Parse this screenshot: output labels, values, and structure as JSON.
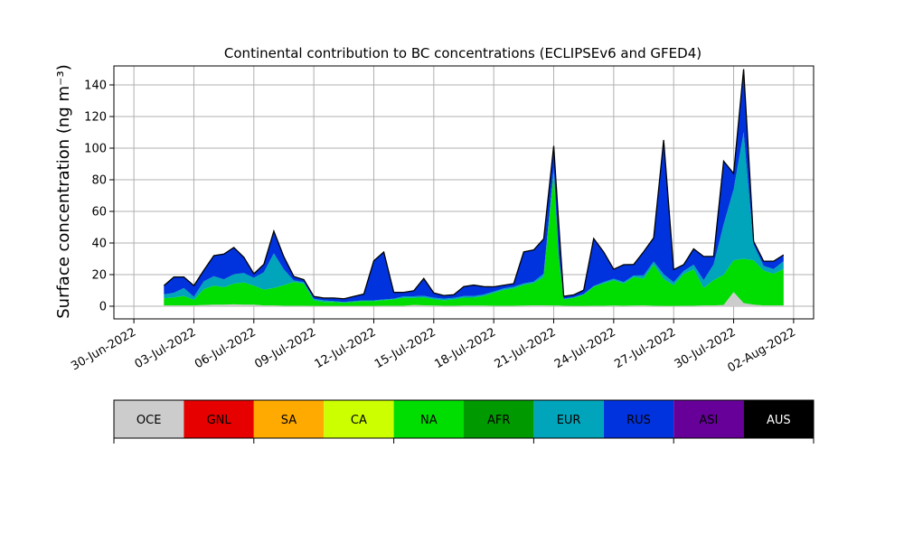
{
  "chart_data": {
    "type": "area",
    "stacked": true,
    "title": "Continental contribution to BC concentrations (ECLIPSEv6 and GFED4)",
    "ylabel": "Surface concentration (ng m⁻³)",
    "xlabel": "",
    "grid": true,
    "xlim": [
      "2022-06-29",
      "2022-08-03"
    ],
    "ylim": [
      -8,
      152
    ],
    "yticks": [
      0,
      20,
      40,
      60,
      80,
      100,
      120,
      140
    ],
    "xticks": [
      "2022-06-30",
      "2022-07-03",
      "2022-07-06",
      "2022-07-09",
      "2022-07-12",
      "2022-07-15",
      "2022-07-18",
      "2022-07-21",
      "2022-07-24",
      "2022-07-27",
      "2022-07-30",
      "2022-08-02"
    ],
    "xtick_labels": [
      "30-Jun-2022",
      "03-Jul-2022",
      "06-Jul-2022",
      "09-Jul-2022",
      "12-Jul-2022",
      "15-Jul-2022",
      "18-Jul-2022",
      "21-Jul-2022",
      "24-Jul-2022",
      "27-Jul-2022",
      "30-Jul-2022",
      "02-Aug-2022"
    ],
    "x": [
      "2022-07-01 12:00",
      "2022-07-02 00:00",
      "2022-07-02 12:00",
      "2022-07-03 00:00",
      "2022-07-03 12:00",
      "2022-07-04 00:00",
      "2022-07-04 12:00",
      "2022-07-05 00:00",
      "2022-07-05 12:00",
      "2022-07-06 00:00",
      "2022-07-06 12:00",
      "2022-07-07 00:00",
      "2022-07-07 12:00",
      "2022-07-08 00:00",
      "2022-07-08 12:00",
      "2022-07-09 00:00",
      "2022-07-09 12:00",
      "2022-07-10 00:00",
      "2022-07-10 12:00",
      "2022-07-11 00:00",
      "2022-07-11 12:00",
      "2022-07-12 00:00",
      "2022-07-12 12:00",
      "2022-07-13 00:00",
      "2022-07-13 12:00",
      "2022-07-14 00:00",
      "2022-07-14 12:00",
      "2022-07-15 00:00",
      "2022-07-15 12:00",
      "2022-07-16 00:00",
      "2022-07-16 12:00",
      "2022-07-17 00:00",
      "2022-07-17 12:00",
      "2022-07-18 00:00",
      "2022-07-18 12:00",
      "2022-07-19 00:00",
      "2022-07-19 12:00",
      "2022-07-20 00:00",
      "2022-07-20 12:00",
      "2022-07-21 00:00",
      "2022-07-21 06:00",
      "2022-07-21 12:00",
      "2022-07-22 00:00",
      "2022-07-22 12:00",
      "2022-07-23 00:00",
      "2022-07-23 12:00",
      "2022-07-24 00:00",
      "2022-07-24 12:00",
      "2022-07-25 00:00",
      "2022-07-25 12:00",
      "2022-07-26 00:00",
      "2022-07-26 12:00",
      "2022-07-27 00:00",
      "2022-07-27 12:00",
      "2022-07-28 00:00",
      "2022-07-28 12:00",
      "2022-07-29 00:00",
      "2022-07-29 12:00",
      "2022-07-30 00:00",
      "2022-07-30 12:00",
      "2022-07-31 00:00",
      "2022-07-31 12:00",
      "2022-08-01 00:00",
      "2022-08-01 12:00"
    ],
    "series": [
      {
        "name": "OCE",
        "color": "#cccccc",
        "values": [
          0.5,
          0.5,
          0.5,
          0.5,
          0.8,
          1,
          1,
          1.2,
          1,
          1,
          0.5,
          0.5,
          0.3,
          0.3,
          0.3,
          0.2,
          0.2,
          0.2,
          0.2,
          0.2,
          0.2,
          0.2,
          0.3,
          0.3,
          0.3,
          0.8,
          0.6,
          0.4,
          0.3,
          0.3,
          0.4,
          0.4,
          0.4,
          0.3,
          0.3,
          0.3,
          0.4,
          0.6,
          0.6,
          0.4,
          0.4,
          0.3,
          0.2,
          0.2,
          0.3,
          0.3,
          0.4,
          0.3,
          0.4,
          0.5,
          0.3,
          0.2,
          0.2,
          0.3,
          0.3,
          0.5,
          0.5,
          0.8,
          9,
          2,
          1,
          0.5,
          0.5,
          0.5
        ]
      },
      {
        "name": "GNL",
        "color": "#e60000",
        "values": [
          0,
          0,
          0,
          0,
          0,
          0,
          0,
          0,
          0,
          0,
          0,
          0,
          0,
          0,
          0,
          0,
          0,
          0,
          0,
          0,
          0,
          0,
          0,
          0,
          0,
          0,
          0,
          0,
          0,
          0,
          0,
          0,
          0,
          0,
          0,
          0,
          0,
          0,
          0,
          0,
          0,
          0,
          0,
          0,
          0,
          0,
          0,
          0,
          0,
          0,
          0,
          0,
          0,
          0,
          0,
          0,
          0,
          0,
          0,
          0,
          0,
          0,
          0,
          0
        ]
      },
      {
        "name": "SA",
        "color": "#ffaa00",
        "values": [
          0,
          0,
          0,
          0,
          0,
          0,
          0,
          0,
          0,
          0,
          0,
          0,
          0,
          0,
          0,
          0,
          0,
          0,
          0,
          0,
          0,
          0,
          0,
          0,
          0,
          0,
          0,
          0,
          0,
          0,
          0,
          0,
          0,
          0,
          0,
          0,
          0,
          0,
          0,
          0,
          0,
          0,
          0,
          0,
          0,
          0,
          0,
          0,
          0,
          0,
          0,
          0,
          0,
          0,
          0,
          0,
          0,
          0,
          0,
          0,
          0,
          0,
          0,
          0
        ]
      },
      {
        "name": "CA",
        "color": "#ccff00",
        "values": [
          0,
          0,
          0,
          0,
          0,
          0,
          0,
          0,
          0,
          0,
          0,
          0,
          0,
          0,
          0,
          0,
          0,
          0,
          0,
          0,
          0,
          0,
          0,
          0,
          0,
          0,
          0,
          0,
          0,
          0,
          0,
          0,
          0,
          0,
          0,
          0,
          0,
          0,
          0,
          0,
          0,
          0,
          0,
          0,
          0,
          0,
          0,
          0,
          0,
          0,
          0,
          0,
          0,
          0,
          0,
          0,
          0,
          0,
          0,
          0,
          0,
          0,
          0,
          0
        ]
      },
      {
        "name": "NA",
        "color": "#00dd00",
        "values": [
          4.5,
          5,
          6,
          3.5,
          10,
          12,
          11,
          13,
          14,
          12,
          10,
          11,
          13,
          15,
          14,
          3.5,
          2.5,
          2.5,
          2,
          2.5,
          3,
          3,
          3.5,
          4,
          5,
          4.5,
          5,
          4,
          3.5,
          4,
          5,
          5,
          6,
          8,
          10,
          11,
          13,
          14,
          18,
          84,
          30,
          4,
          5,
          7,
          12,
          14,
          16,
          14,
          18,
          17,
          26,
          17,
          13,
          20,
          23,
          11,
          16,
          19,
          20,
          28,
          28,
          22,
          20,
          23
        ]
      },
      {
        "name": "AFR",
        "color": "#009900",
        "values": [
          0,
          0,
          0,
          0,
          0,
          0,
          0,
          0,
          0,
          0,
          0,
          0,
          0,
          0,
          0,
          0,
          0,
          0,
          0,
          0,
          0,
          0,
          0,
          0,
          0,
          0,
          0,
          0,
          0,
          0,
          0,
          0,
          0,
          0,
          0,
          0,
          0,
          0,
          0,
          0,
          0,
          0,
          0,
          0,
          0,
          0,
          0,
          0,
          0,
          0,
          0,
          0,
          0,
          0,
          0,
          0,
          0,
          0,
          0,
          0,
          0,
          0,
          0,
          0
        ]
      },
      {
        "name": "EUR",
        "color": "#00a5bb",
        "values": [
          2.5,
          3,
          5,
          2,
          5,
          6,
          5,
          6,
          6,
          5,
          11,
          22,
          10,
          1,
          1,
          1,
          1,
          0.5,
          0.5,
          0.5,
          0.5,
          0.5,
          0.5,
          0.5,
          1,
          1,
          1,
          1,
          1,
          1,
          1,
          1,
          1,
          1,
          1,
          1,
          1,
          1,
          2,
          3,
          2,
          0.5,
          0.5,
          0.5,
          0.5,
          1,
          1,
          1,
          1,
          2,
          2,
          3,
          2,
          2,
          3,
          5,
          10,
          32,
          45,
          80,
          10,
          3,
          3,
          5
        ]
      },
      {
        "name": "RUS",
        "color": "#0033dd",
        "values": [
          5.5,
          10,
          7,
          7,
          7,
          13,
          16,
          17,
          10,
          2.5,
          5,
          14,
          8,
          2.5,
          1.5,
          1.5,
          1.5,
          2,
          2,
          3,
          4,
          25,
          30,
          4,
          2.5,
          3.5,
          11,
          3,
          2,
          2,
          6,
          7,
          5,
          3,
          2,
          2,
          20,
          20,
          22,
          14,
          20,
          1.5,
          1.5,
          2.5,
          30,
          19,
          6,
          11,
          7,
          15,
          15,
          85,
          8,
          4,
          10,
          15,
          5,
          40,
          10,
          40,
          2,
          3,
          5,
          4
        ]
      },
      {
        "name": "ASI",
        "color": "#660099",
        "values": [
          0,
          0,
          0,
          0,
          0,
          0,
          0,
          0,
          0,
          0,
          0,
          0,
          0,
          0,
          0,
          0,
          0,
          0,
          0,
          0,
          0,
          0,
          0,
          0,
          0,
          0,
          0,
          0,
          0,
          0,
          0,
          0,
          0,
          0,
          0,
          0,
          0,
          0,
          0,
          0,
          0,
          0,
          0,
          0,
          0,
          0,
          0,
          0,
          0,
          0,
          0,
          0,
          0,
          0,
          0,
          0,
          0,
          0,
          0,
          0,
          0,
          0,
          0,
          0
        ]
      },
      {
        "name": "AUS",
        "color": "#000000",
        "values": [
          0,
          0,
          0,
          0,
          0,
          0,
          0,
          0,
          0,
          0,
          0,
          0,
          0,
          0,
          0,
          0,
          0,
          0,
          0,
          0,
          0,
          0,
          0,
          0,
          0,
          0,
          0,
          0,
          0,
          0,
          0,
          0,
          0,
          0,
          0,
          0,
          0,
          0,
          0,
          0,
          0,
          0,
          0,
          0,
          0,
          0,
          0,
          0,
          0,
          0,
          0,
          0,
          0,
          0,
          0,
          0,
          0,
          0,
          0,
          0,
          0,
          0,
          0,
          0
        ]
      }
    ],
    "legend_placement": "bottom",
    "legend_text_colors": [
      "#000000",
      "#000000",
      "#000000",
      "#000000",
      "#000000",
      "#000000",
      "#000000",
      "#000000",
      "#000000",
      "#ffffff"
    ]
  }
}
